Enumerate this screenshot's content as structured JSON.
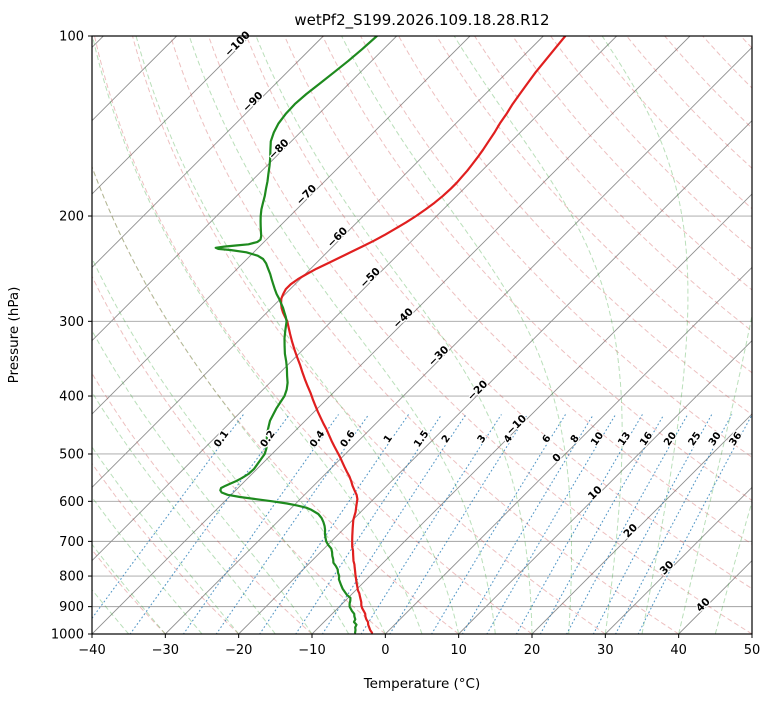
{
  "title": "wetPf2_S199.2026.109.18.28.R12",
  "axes": {
    "x_label": "Temperature (°C)",
    "y_label": "Pressure (hPa)",
    "x_ticks": [
      -40,
      -30,
      -20,
      -10,
      0,
      10,
      20,
      30,
      40,
      50
    ],
    "y_ticks": [
      100,
      200,
      300,
      400,
      500,
      600,
      700,
      800,
      900,
      1000
    ]
  },
  "style": {
    "temperature_color": "#e01f1f",
    "dewpoint_color": "#1e8a1e",
    "isobar_color": "#a3a3a3",
    "isotherm_color": "#8f8f8f",
    "dry_adiabat_color": "#cc4b4b",
    "moist_adiabat_color": "#2e9e2e",
    "mixing_line_color": "#1f77b4",
    "label_negative_color": "#1f77b4",
    "label_zero_color": "#7f7f7f",
    "label_positive_color": "#d62728"
  },
  "chart_data": {
    "type": "line",
    "variant": "skew-T log-p sounding",
    "title": "wetPf2_S199.2026.109.18.28.R12",
    "xlabel": "Temperature (°C)",
    "ylabel": "Pressure (hPa)",
    "xlim": [
      -40,
      50
    ],
    "pressure_lim_hPa": [
      1000,
      100
    ],
    "skew": "45deg isotherms, log-p vertical axis",
    "grid": true,
    "background_lines": {
      "isobars_hPa": [
        100,
        200,
        300,
        400,
        500,
        600,
        700,
        800,
        900,
        1000
      ],
      "isotherms_C": {
        "from": -160,
        "to": 60,
        "step": 10
      },
      "dry_adiabats_theta_C": {
        "from": -30,
        "to": 200,
        "step": 10
      },
      "moist_adiabats_start_C": {
        "from": -40,
        "to": 45,
        "step": 5
      },
      "mixing_ratio_g_kg": [
        0.1,
        0.2,
        0.4,
        0.6,
        1,
        1.5,
        2,
        3,
        4,
        6,
        8,
        10,
        13,
        16,
        20,
        25,
        30,
        36
      ]
    },
    "isotherm_labels": [
      {
        "t": -100,
        "p": 104
      },
      {
        "t": -90,
        "p": 130
      },
      {
        "t": -80,
        "p": 156
      },
      {
        "t": -70,
        "p": 186
      },
      {
        "t": -60,
        "p": 219
      },
      {
        "t": -50,
        "p": 256
      },
      {
        "t": -40,
        "p": 299
      },
      {
        "t": -30,
        "p": 346
      },
      {
        "t": -20,
        "p": 395
      },
      {
        "t": -10,
        "p": 451
      },
      {
        "t": 0,
        "p": 512
      },
      {
        "t": 10,
        "p": 586
      },
      {
        "t": 20,
        "p": 678
      },
      {
        "t": 30,
        "p": 782
      },
      {
        "t": 40,
        "p": 902
      }
    ],
    "mixing_labels_at_hPa": 475,
    "mixing_labels": [
      "0.1",
      "0.2",
      "0.4",
      "0.6",
      "1",
      "1.5",
      "2",
      "3",
      "4",
      "6",
      "8",
      "10",
      "13",
      "16",
      "20",
      "25",
      "30",
      "36"
    ],
    "series": [
      {
        "name": "temperature",
        "color_key": "temperature_color",
        "points_p_t": [
          [
            995,
            -2.0
          ],
          [
            985,
            -2.6
          ],
          [
            975,
            -3.1
          ],
          [
            965,
            -3.6
          ],
          [
            955,
            -4.0
          ],
          [
            945,
            -4.6
          ],
          [
            935,
            -5.1
          ],
          [
            925,
            -5.5
          ],
          [
            915,
            -6.1
          ],
          [
            905,
            -6.7
          ],
          [
            895,
            -7.2
          ],
          [
            885,
            -7.6
          ],
          [
            875,
            -8.1
          ],
          [
            865,
            -8.6
          ],
          [
            855,
            -9.1
          ],
          [
            845,
            -9.7
          ],
          [
            835,
            -10.2
          ],
          [
            825,
            -10.7
          ],
          [
            815,
            -11.2
          ],
          [
            805,
            -11.7
          ],
          [
            795,
            -12.2
          ],
          [
            785,
            -12.7
          ],
          [
            775,
            -13.2
          ],
          [
            765,
            -13.7
          ],
          [
            755,
            -14.3
          ],
          [
            745,
            -14.8
          ],
          [
            735,
            -15.3
          ],
          [
            725,
            -15.8
          ],
          [
            715,
            -16.4
          ],
          [
            705,
            -16.9
          ],
          [
            695,
            -17.4
          ],
          [
            685,
            -17.9
          ],
          [
            675,
            -18.4
          ],
          [
            665,
            -18.9
          ],
          [
            655,
            -19.4
          ],
          [
            645,
            -19.9
          ],
          [
            635,
            -20.3
          ],
          [
            625,
            -20.7
          ],
          [
            615,
            -21.2
          ],
          [
            605,
            -21.7
          ],
          [
            595,
            -22.2
          ],
          [
            585,
            -22.9
          ],
          [
            575,
            -23.8
          ],
          [
            565,
            -24.7
          ],
          [
            555,
            -25.5
          ],
          [
            545,
            -26.4
          ],
          [
            535,
            -27.4
          ],
          [
            525,
            -28.4
          ],
          [
            515,
            -29.4
          ],
          [
            505,
            -30.4
          ],
          [
            495,
            -31.5
          ],
          [
            485,
            -32.6
          ],
          [
            475,
            -33.7
          ],
          [
            465,
            -34.8
          ],
          [
            455,
            -35.9
          ],
          [
            445,
            -37.1
          ],
          [
            435,
            -38.3
          ],
          [
            425,
            -39.5
          ],
          [
            415,
            -40.7
          ],
          [
            405,
            -41.9
          ],
          [
            395,
            -43.1
          ],
          [
            385,
            -44.4
          ],
          [
            375,
            -45.7
          ],
          [
            365,
            -47.0
          ],
          [
            355,
            -48.3
          ],
          [
            345,
            -49.7
          ],
          [
            335,
            -51.1
          ],
          [
            325,
            -52.5
          ],
          [
            315,
            -53.9
          ],
          [
            305,
            -55.3
          ],
          [
            300,
            -56.0
          ],
          [
            295,
            -56.9
          ],
          [
            290,
            -57.8
          ],
          [
            285,
            -58.6
          ],
          [
            280,
            -59.3
          ],
          [
            275,
            -59.9
          ],
          [
            270,
            -60.3
          ],
          [
            265,
            -60.6
          ],
          [
            260,
            -60.6
          ],
          [
            255,
            -60.3
          ],
          [
            250,
            -59.8
          ],
          [
            245,
            -59.2
          ],
          [
            240,
            -58.4
          ],
          [
            235,
            -57.6
          ],
          [
            230,
            -56.8
          ],
          [
            225,
            -56.0
          ],
          [
            220,
            -55.2
          ],
          [
            215,
            -54.5
          ],
          [
            210,
            -53.9
          ],
          [
            205,
            -53.3
          ],
          [
            200,
            -52.8
          ],
          [
            195,
            -52.4
          ],
          [
            190,
            -52.1
          ],
          [
            185,
            -51.9
          ],
          [
            180,
            -51.8
          ],
          [
            176,
            -51.8
          ],
          [
            172,
            -51.9
          ],
          [
            168,
            -52.0
          ],
          [
            164,
            -52.2
          ],
          [
            160,
            -52.4
          ],
          [
            155,
            -52.7
          ],
          [
            150,
            -53.1
          ],
          [
            145,
            -53.5
          ],
          [
            140,
            -54.0
          ],
          [
            135,
            -54.4
          ],
          [
            130,
            -54.9
          ],
          [
            125,
            -55.3
          ],
          [
            120,
            -55.7
          ],
          [
            115,
            -56.1
          ],
          [
            110,
            -56.4
          ],
          [
            105,
            -56.7
          ],
          [
            100,
            -57.0
          ]
        ]
      },
      {
        "name": "dewpoint",
        "color_key": "dewpoint_color",
        "points_p_t": [
          [
            995,
            -4.3
          ],
          [
            985,
            -4.6
          ],
          [
            975,
            -5.0
          ],
          [
            965,
            -5.2
          ],
          [
            955,
            -5.9
          ],
          [
            945,
            -6.1
          ],
          [
            935,
            -6.6
          ],
          [
            925,
            -7.0
          ],
          [
            915,
            -7.7
          ],
          [
            905,
            -8.3
          ],
          [
            900,
            -8.6
          ],
          [
            890,
            -9.0
          ],
          [
            880,
            -9.3
          ],
          [
            870,
            -9.7
          ],
          [
            860,
            -10.6
          ],
          [
            850,
            -11.3
          ],
          [
            840,
            -12.0
          ],
          [
            830,
            -12.6
          ],
          [
            820,
            -13.2
          ],
          [
            810,
            -13.8
          ],
          [
            800,
            -14.2
          ],
          [
            790,
            -14.8
          ],
          [
            780,
            -15.3
          ],
          [
            770,
            -16.0
          ],
          [
            760,
            -16.8
          ],
          [
            750,
            -17.3
          ],
          [
            740,
            -17.9
          ],
          [
            730,
            -18.4
          ],
          [
            720,
            -19.0
          ],
          [
            710,
            -19.9
          ],
          [
            700,
            -20.7
          ],
          [
            690,
            -21.3
          ],
          [
            680,
            -21.9
          ],
          [
            670,
            -22.4
          ],
          [
            660,
            -23.0
          ],
          [
            650,
            -23.7
          ],
          [
            640,
            -24.5
          ],
          [
            630,
            -25.5
          ],
          [
            620,
            -27.0
          ],
          [
            615,
            -28.0
          ],
          [
            610,
            -29.5
          ],
          [
            605,
            -31.2
          ],
          [
            600,
            -33.5
          ],
          [
            595,
            -36.0
          ],
          [
            590,
            -38.5
          ],
          [
            585,
            -40.5
          ],
          [
            580,
            -41.6
          ],
          [
            575,
            -42.1
          ],
          [
            570,
            -42.3
          ],
          [
            565,
            -42.0
          ],
          [
            560,
            -41.6
          ],
          [
            555,
            -41.2
          ],
          [
            550,
            -40.9
          ],
          [
            545,
            -40.7
          ],
          [
            540,
            -40.5
          ],
          [
            530,
            -40.4
          ],
          [
            520,
            -40.6
          ],
          [
            510,
            -40.8
          ],
          [
            500,
            -41.0
          ],
          [
            490,
            -41.5
          ],
          [
            480,
            -42.1
          ],
          [
            470,
            -42.9
          ],
          [
            460,
            -43.6
          ],
          [
            450,
            -44.2
          ],
          [
            440,
            -44.8
          ],
          [
            430,
            -45.2
          ],
          [
            420,
            -45.6
          ],
          [
            410,
            -45.9
          ],
          [
            400,
            -46.2
          ],
          [
            390,
            -46.8
          ],
          [
            380,
            -47.6
          ],
          [
            370,
            -48.6
          ],
          [
            360,
            -49.6
          ],
          [
            350,
            -50.7
          ],
          [
            340,
            -51.9
          ],
          [
            330,
            -53.0
          ],
          [
            320,
            -54.1
          ],
          [
            310,
            -55.1
          ],
          [
            300,
            -56.1
          ],
          [
            295,
            -56.8
          ],
          [
            290,
            -57.6
          ],
          [
            285,
            -58.4
          ],
          [
            280,
            -59.3
          ],
          [
            275,
            -60.2
          ],
          [
            270,
            -61.2
          ],
          [
            265,
            -62.1
          ],
          [
            260,
            -63.0
          ],
          [
            255,
            -63.9
          ],
          [
            250,
            -64.8
          ],
          [
            245,
            -65.8
          ],
          [
            240,
            -66.8
          ],
          [
            236,
            -67.8
          ],
          [
            233,
            -69.0
          ],
          [
            230,
            -71.0
          ],
          [
            228,
            -73.5
          ],
          [
            227,
            -75.3
          ],
          [
            226,
            -75.8
          ],
          [
            225,
            -74.8
          ],
          [
            224,
            -73.2
          ],
          [
            223,
            -71.8
          ],
          [
            221,
            -70.9
          ],
          [
            219,
            -70.8
          ],
          [
            216,
            -71.2
          ],
          [
            212,
            -71.9
          ],
          [
            208,
            -72.6
          ],
          [
            204,
            -73.3
          ],
          [
            200,
            -74.0
          ],
          [
            195,
            -74.8
          ],
          [
            190,
            -75.5
          ],
          [
            185,
            -76.2
          ],
          [
            180,
            -77.0
          ],
          [
            175,
            -77.8
          ],
          [
            170,
            -78.7
          ],
          [
            165,
            -79.6
          ],
          [
            160,
            -80.6
          ],
          [
            155,
            -81.7
          ],
          [
            150,
            -82.8
          ],
          [
            145,
            -83.6
          ],
          [
            140,
            -84.2
          ],
          [
            135,
            -84.5
          ],
          [
            130,
            -84.6
          ],
          [
            125,
            -84.4
          ],
          [
            120,
            -84.0
          ],
          [
            115,
            -83.6
          ],
          [
            110,
            -83.2
          ],
          [
            105,
            -82.9
          ],
          [
            100,
            -82.7
          ]
        ]
      }
    ]
  }
}
